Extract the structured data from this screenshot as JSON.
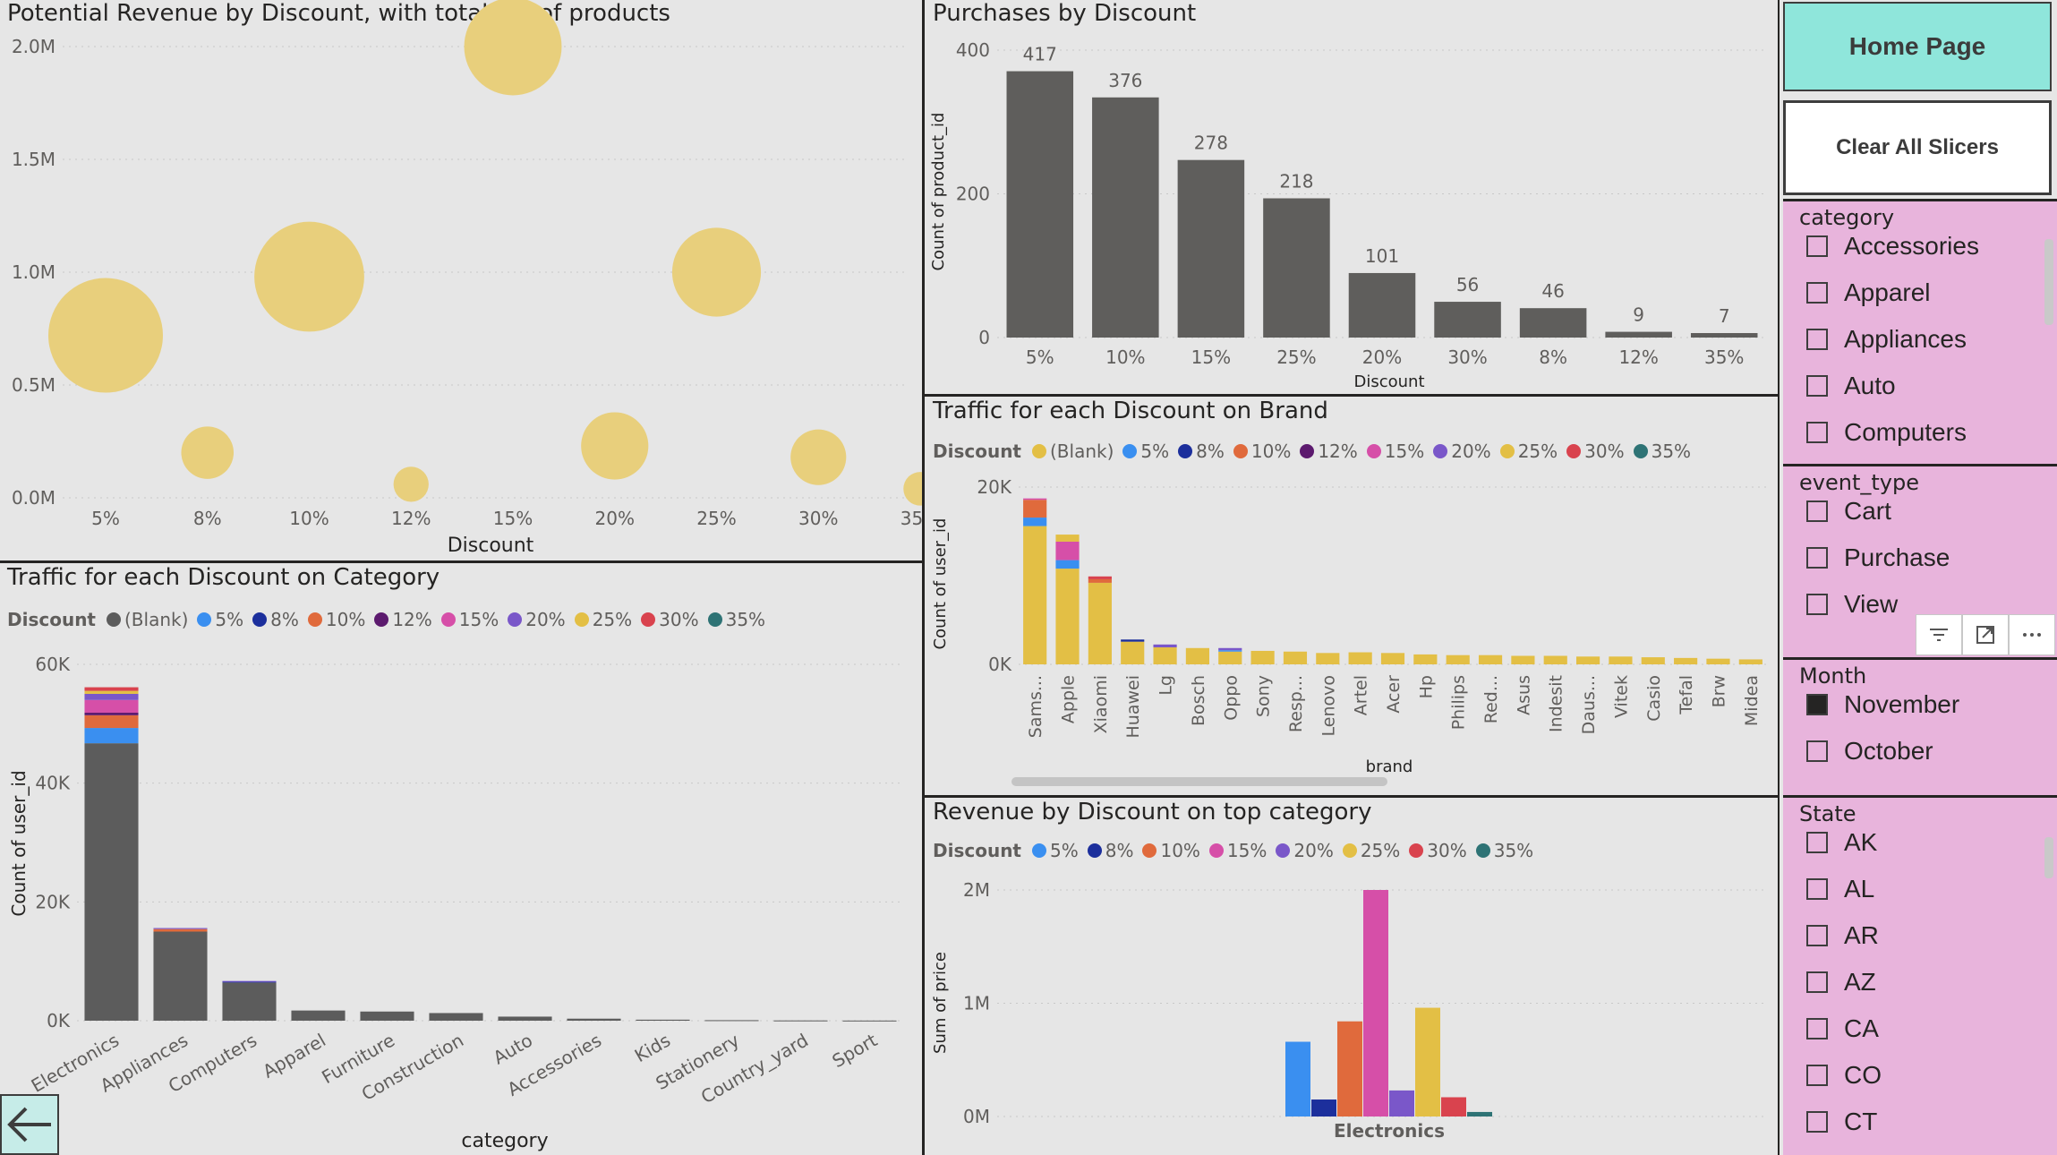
{
  "panels": {
    "bubble": {
      "title": "Potential Revenue by Discount, with total no. of products"
    },
    "purchases": {
      "title": "Purchases by Discount"
    },
    "brand": {
      "title": "Traffic for each Discount on Brand"
    },
    "category": {
      "title": "Traffic for each Discount on Category"
    },
    "revenue": {
      "title": "Revenue by Discount on top category"
    }
  },
  "legend_title": "Discount",
  "legend_items": [
    {
      "label": "(Blank)",
      "color": "#5c5c5c"
    },
    {
      "label": "5%",
      "color": "#3a8ff0"
    },
    {
      "label": "8%",
      "color": "#1c2f9c"
    },
    {
      "label": "10%",
      "color": "#e06a3c"
    },
    {
      "label": "12%",
      "color": "#5c1a6e"
    },
    {
      "label": "15%",
      "color": "#d64fa8"
    },
    {
      "label": "20%",
      "color": "#7a57c9"
    },
    {
      "label": "25%",
      "color": "#e3bf45"
    },
    {
      "label": "30%",
      "color": "#d9434e"
    },
    {
      "label": "35%",
      "color": "#2e7375"
    }
  ],
  "brand_legend_items": [
    {
      "label": "(Blank)",
      "color": "#e3bf45"
    },
    {
      "label": "5%",
      "color": "#3a8ff0"
    },
    {
      "label": "8%",
      "color": "#1c2f9c"
    },
    {
      "label": "10%",
      "color": "#e06a3c"
    },
    {
      "label": "12%",
      "color": "#5c1a6e"
    },
    {
      "label": "15%",
      "color": "#d64fa8"
    },
    {
      "label": "20%",
      "color": "#7a57c9"
    },
    {
      "label": "25%",
      "color": "#e3bf45"
    },
    {
      "label": "30%",
      "color": "#d9434e"
    },
    {
      "label": "35%",
      "color": "#2e7375"
    }
  ],
  "revenue_legend_items": [
    {
      "label": "5%",
      "color": "#3a8ff0"
    },
    {
      "label": "8%",
      "color": "#1c2f9c"
    },
    {
      "label": "10%",
      "color": "#e06a3c"
    },
    {
      "label": "15%",
      "color": "#d64fa8"
    },
    {
      "label": "20%",
      "color": "#7a57c9"
    },
    {
      "label": "25%",
      "color": "#e3bf45"
    },
    {
      "label": "30%",
      "color": "#d9434e"
    },
    {
      "label": "35%",
      "color": "#2e7375"
    }
  ],
  "chart_data": [
    {
      "id": "bubble",
      "type": "scatter",
      "title": "Potential Revenue by Discount, with total no. of products",
      "xlabel": "Discount",
      "ylabel": "",
      "categories": [
        "5%",
        "8%",
        "10%",
        "12%",
        "15%",
        "20%",
        "25%",
        "30%",
        "35%"
      ],
      "values": [
        720000,
        200000,
        980000,
        60000,
        2000000,
        230000,
        1000000,
        180000,
        40000
      ],
      "sizes": [
        417,
        46,
        376,
        9,
        278,
        101,
        218,
        56,
        7
      ],
      "yticks": [
        "0.0M",
        "0.5M",
        "1.0M",
        "1.5M",
        "2.0M"
      ],
      "ylim": [
        0,
        2000000
      ],
      "color": "#e8cf7c"
    },
    {
      "id": "purchases",
      "type": "bar",
      "title": "Purchases by Discount",
      "xlabel": "Discount",
      "ylabel": "Count of product_id",
      "categories": [
        "5%",
        "10%",
        "15%",
        "25%",
        "20%",
        "30%",
        "8%",
        "12%",
        "35%"
      ],
      "values": [
        417,
        376,
        278,
        218,
        101,
        56,
        46,
        9,
        7
      ],
      "yticks": [
        "0",
        "200",
        "400"
      ],
      "ylim": [
        0,
        450
      ],
      "color": "#5f5e5c"
    },
    {
      "id": "brand",
      "type": "bar",
      "title": "Traffic for each Discount on Brand",
      "xlabel": "brand",
      "ylabel": "Count of user_id",
      "categories": [
        "Sams...",
        "Apple",
        "Xiaomi",
        "Huawei",
        "Lg",
        "Bosch",
        "Oppo",
        "Sony",
        "Resp...",
        "Lenovo",
        "Artel",
        "Acer",
        "Hp",
        "Philips",
        "Red...",
        "Asus",
        "Indesit",
        "Daus...",
        "Vitek",
        "Casio",
        "Tefal",
        "Brw",
        "Midea"
      ],
      "series": [
        {
          "name": "(Blank)",
          "values": [
            19500,
            13500,
            11500,
            3200,
            2400,
            2300,
            1800,
            1900,
            1800,
            1600,
            1700,
            1600,
            1400,
            1300,
            1300,
            1200,
            1200,
            1100,
            1100,
            1000,
            900,
            800,
            700
          ]
        },
        {
          "name": "5%",
          "values": [
            1200,
            1200,
            0,
            0,
            0,
            0,
            200,
            0,
            0,
            0,
            0,
            0,
            0,
            0,
            0,
            0,
            0,
            0,
            0,
            0,
            0,
            0,
            0
          ]
        },
        {
          "name": "8%",
          "values": [
            0,
            0,
            0,
            300,
            0,
            0,
            0,
            0,
            0,
            0,
            0,
            0,
            0,
            0,
            0,
            0,
            0,
            0,
            0,
            0,
            0,
            0,
            0
          ]
        },
        {
          "name": "10%",
          "values": [
            2500,
            0,
            500,
            0,
            0,
            0,
            0,
            0,
            0,
            0,
            0,
            0,
            0,
            0,
            0,
            0,
            0,
            0,
            0,
            0,
            0,
            0,
            0
          ]
        },
        {
          "name": "12%",
          "values": [
            0,
            0,
            0,
            0,
            0,
            0,
            0,
            0,
            0,
            0,
            0,
            0,
            0,
            0,
            0,
            0,
            0,
            0,
            0,
            0,
            0,
            0,
            0
          ]
        },
        {
          "name": "15%",
          "values": [
            200,
            2600,
            0,
            0,
            0,
            0,
            0,
            0,
            0,
            0,
            0,
            0,
            0,
            0,
            0,
            0,
            0,
            0,
            0,
            0,
            0,
            0,
            0
          ]
        },
        {
          "name": "20%",
          "values": [
            0,
            0,
            0,
            0,
            400,
            0,
            300,
            0,
            0,
            0,
            0,
            0,
            0,
            0,
            0,
            0,
            0,
            0,
            0,
            0,
            0,
            0,
            0
          ]
        },
        {
          "name": "25%",
          "values": [
            0,
            1000,
            0,
            0,
            0,
            0,
            0,
            0,
            0,
            0,
            0,
            0,
            0,
            0,
            0,
            0,
            0,
            0,
            0,
            0,
            0,
            0,
            0
          ]
        },
        {
          "name": "30%",
          "values": [
            0,
            0,
            400,
            0,
            0,
            0,
            0,
            0,
            0,
            0,
            0,
            0,
            0,
            0,
            0,
            0,
            0,
            0,
            0,
            0,
            0,
            0,
            0
          ]
        },
        {
          "name": "35%",
          "values": [
            0,
            0,
            0,
            0,
            0,
            0,
            0,
            0,
            0,
            0,
            0,
            0,
            0,
            0,
            0,
            0,
            0,
            0,
            0,
            0,
            0,
            0,
            0
          ]
        }
      ],
      "yticks": [
        "0K",
        "20K"
      ],
      "ylim": [
        0,
        25000
      ]
    },
    {
      "id": "category",
      "type": "bar",
      "title": "Traffic for each Discount on Category",
      "xlabel": "category",
      "ylabel": "Count of user_id",
      "categories": [
        "Electronics",
        "Appliances",
        "Computers",
        "Apparel",
        "Furniture",
        "Construction",
        "Auto",
        "Accessories",
        "Kids",
        "Stationery",
        "Country_yard",
        "Sport"
      ],
      "series": [
        {
          "name": "(Blank)",
          "values": [
            54500,
            17500,
            7500,
            2000,
            1800,
            1500,
            800,
            400,
            200,
            100,
            50,
            30
          ]
        },
        {
          "name": "5%",
          "values": [
            3000,
            0,
            0,
            0,
            0,
            0,
            0,
            0,
            0,
            0,
            0,
            0
          ]
        },
        {
          "name": "8%",
          "values": [
            0,
            0,
            200,
            0,
            0,
            0,
            0,
            0,
            0,
            0,
            0,
            0
          ]
        },
        {
          "name": "10%",
          "values": [
            2500,
            500,
            0,
            0,
            0,
            0,
            0,
            0,
            0,
            0,
            0,
            0
          ]
        },
        {
          "name": "12%",
          "values": [
            500,
            0,
            0,
            0,
            0,
            0,
            0,
            0,
            0,
            0,
            0,
            0
          ]
        },
        {
          "name": "15%",
          "values": [
            2500,
            0,
            0,
            0,
            0,
            0,
            0,
            0,
            0,
            0,
            0,
            0
          ]
        },
        {
          "name": "20%",
          "values": [
            1200,
            200,
            100,
            0,
            0,
            0,
            0,
            0,
            0,
            0,
            0,
            0
          ]
        },
        {
          "name": "25%",
          "values": [
            600,
            0,
            0,
            0,
            0,
            0,
            0,
            0,
            0,
            0,
            0,
            0
          ]
        },
        {
          "name": "30%",
          "values": [
            700,
            0,
            0,
            0,
            0,
            0,
            0,
            0,
            0,
            0,
            0,
            0
          ]
        },
        {
          "name": "35%",
          "values": [
            0,
            0,
            0,
            0,
            0,
            0,
            0,
            0,
            0,
            0,
            0,
            0
          ]
        }
      ],
      "yticks": [
        "0K",
        "20K",
        "40K",
        "60K"
      ],
      "ylim": [
        0,
        70000
      ]
    },
    {
      "id": "revenue",
      "type": "bar",
      "title": "Revenue by Discount on top category",
      "xlabel": "",
      "ylabel": "Sum of price",
      "categories": [
        "Electronics"
      ],
      "series": [
        {
          "name": "5%",
          "values": [
            660000
          ]
        },
        {
          "name": "8%",
          "values": [
            150000
          ]
        },
        {
          "name": "10%",
          "values": [
            840000
          ]
        },
        {
          "name": "15%",
          "values": [
            2000000
          ]
        },
        {
          "name": "20%",
          "values": [
            230000
          ]
        },
        {
          "name": "25%",
          "values": [
            960000
          ]
        },
        {
          "name": "30%",
          "values": [
            170000
          ]
        },
        {
          "name": "35%",
          "values": [
            40000
          ]
        }
      ],
      "yticks": [
        "0M",
        "1M",
        "2M"
      ],
      "ylim": [
        0,
        2000000
      ]
    }
  ],
  "sidebar": {
    "home_label": "Home Page",
    "clear_label": "Clear All Slicers",
    "slicers": [
      {
        "title": "category",
        "items": [
          {
            "label": "Accessories",
            "checked": false
          },
          {
            "label": "Apparel",
            "checked": false
          },
          {
            "label": "Appliances",
            "checked": false
          },
          {
            "label": "Auto",
            "checked": false
          },
          {
            "label": "Computers",
            "checked": false
          }
        ]
      },
      {
        "title": "event_type",
        "items": [
          {
            "label": "Cart",
            "checked": false
          },
          {
            "label": "Purchase",
            "checked": false
          },
          {
            "label": "View",
            "checked": false
          }
        ]
      },
      {
        "title": "Month",
        "items": [
          {
            "label": "November",
            "checked": true
          },
          {
            "label": "October",
            "checked": false
          }
        ]
      },
      {
        "title": "State",
        "items": [
          {
            "label": "AK",
            "checked": false
          },
          {
            "label": "AL",
            "checked": false
          },
          {
            "label": "AR",
            "checked": false
          },
          {
            "label": "AZ",
            "checked": false
          },
          {
            "label": "CA",
            "checked": false
          },
          {
            "label": "CO",
            "checked": false
          },
          {
            "label": "CT",
            "checked": false
          }
        ]
      }
    ],
    "tool_icons": [
      "filter-icon",
      "focus-mode-icon",
      "more-options-icon"
    ]
  }
}
